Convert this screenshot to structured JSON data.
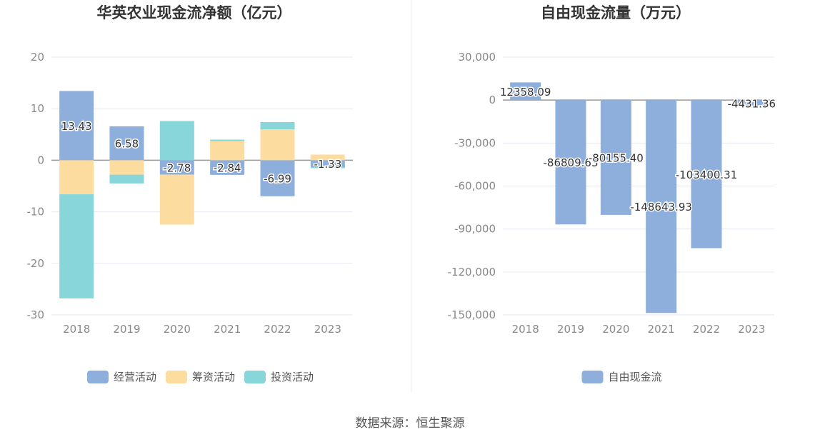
{
  "source_text": "数据来源：恒生聚源",
  "chart_data": [
    {
      "type": "bar",
      "stacked": true,
      "title": "华英农业现金流净额（亿元）",
      "categories": [
        "2018",
        "2019",
        "2020",
        "2021",
        "2022",
        "2023"
      ],
      "ylim": [
        -30,
        20
      ],
      "yticks": [
        20,
        10,
        0,
        -10,
        -20,
        -30
      ],
      "ytick_labels": [
        "20",
        "10",
        "0",
        "-10",
        "-20",
        "-30"
      ],
      "legend_position": "bottom-center",
      "series": [
        {
          "name": "经营活动",
          "color": "#8eaedc",
          "values": [
            13.43,
            6.58,
            -2.78,
            -2.84,
            -6.99,
            -1.33
          ],
          "labels": [
            "13.43",
            "6.58",
            "-2.78",
            "-2.84",
            "-6.99",
            "-1.33"
          ]
        },
        {
          "name": "筹资活动",
          "color": "#fddc9f",
          "values": [
            -6.6,
            -2.8,
            -9.7,
            3.7,
            6.0,
            1.1
          ]
        },
        {
          "name": "投资活动",
          "color": "#88d6da",
          "values": [
            -20.2,
            -1.7,
            7.6,
            0.3,
            1.4,
            -0.2
          ]
        }
      ]
    },
    {
      "type": "bar",
      "title": "自由现金流量（万元）",
      "categories": [
        "2018",
        "2019",
        "2020",
        "2021",
        "2022",
        "2023"
      ],
      "ylim": [
        -150000,
        30000
      ],
      "yticks": [
        30000,
        0,
        -30000,
        -60000,
        -90000,
        -120000,
        -150000
      ],
      "ytick_labels": [
        "30,000",
        "0",
        "-30,000",
        "-60,000",
        "-90,000",
        "-120,000",
        "-150,000"
      ],
      "legend_position": "bottom-center",
      "series": [
        {
          "name": "自由现金流",
          "color": "#8eaedc",
          "values": [
            12358.09,
            -86809.63,
            -80155.4,
            -148643.93,
            -103400.31,
            -4431.36
          ],
          "labels": [
            "12358.09",
            "-86809.63",
            "-80155.40",
            "-148643.93",
            "-103400.31",
            "-4431.36"
          ]
        }
      ]
    }
  ]
}
